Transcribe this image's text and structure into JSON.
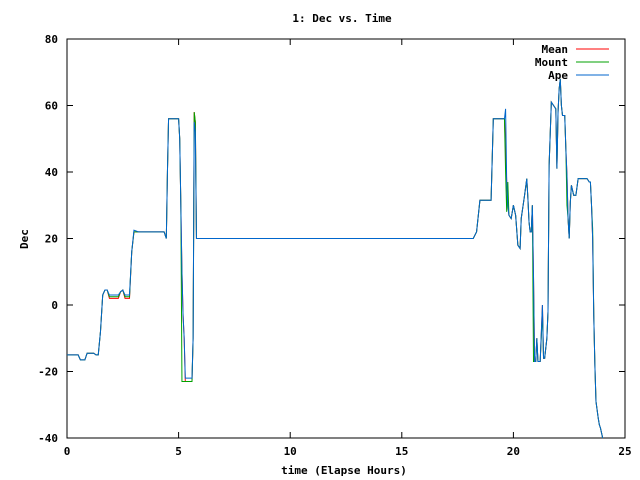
{
  "chart_data": {
    "type": "line",
    "title": "1: Dec vs. Time",
    "xlabel": "time (Elapse Hours)",
    "ylabel": "Dec",
    "xlim": [
      0,
      25
    ],
    "ylim": [
      -40,
      80
    ],
    "x_ticks": [
      "0",
      "5",
      "10",
      "15",
      "20",
      "25"
    ],
    "y_ticks": [
      "-40",
      "-20",
      "0",
      "20",
      "40",
      "60",
      "80"
    ],
    "grid": false,
    "legend_position": "top-right",
    "series": [
      {
        "name": "Mean",
        "color": "#ff0000",
        "points": [
          [
            0,
            -15
          ],
          [
            0.5,
            -15
          ],
          [
            0.6,
            -16.5
          ],
          [
            0.8,
            -16.5
          ],
          [
            0.9,
            -14.5
          ],
          [
            1.2,
            -14.5
          ],
          [
            1.3,
            -15
          ],
          [
            1.4,
            -15
          ],
          [
            1.5,
            -8
          ],
          [
            1.6,
            3
          ],
          [
            1.7,
            4.5
          ],
          [
            1.8,
            4.5
          ],
          [
            1.9,
            2
          ],
          [
            2.3,
            2
          ],
          [
            2.4,
            4
          ],
          [
            2.5,
            4.5
          ],
          [
            2.6,
            2
          ],
          [
            2.8,
            2
          ],
          [
            2.9,
            16
          ],
          [
            3.0,
            22
          ],
          [
            4.35,
            22
          ],
          [
            4.4,
            21
          ],
          [
            4.45,
            20
          ],
          [
            4.5,
            40
          ],
          [
            4.55,
            56
          ],
          [
            5.0,
            56
          ],
          [
            5.05,
            50
          ],
          [
            5.15,
            10
          ],
          [
            5.2,
            -3
          ],
          [
            5.25,
            -10
          ],
          [
            5.3,
            -23
          ],
          [
            5.6,
            -23
          ],
          [
            5.65,
            -10
          ],
          [
            5.7,
            58
          ],
          [
            5.75,
            55
          ],
          [
            5.8,
            20
          ],
          [
            14.3,
            20
          ],
          [
            18.2,
            20
          ],
          [
            18.35,
            22
          ],
          [
            18.5,
            31.5
          ],
          [
            19.0,
            31.5
          ],
          [
            19.1,
            56
          ],
          [
            19.6,
            56
          ],
          [
            19.7,
            37
          ],
          [
            19.75,
            30
          ],
          [
            19.8,
            27
          ],
          [
            19.9,
            26
          ],
          [
            20.0,
            30
          ],
          [
            20.1,
            27
          ],
          [
            20.2,
            18
          ],
          [
            20.3,
            17
          ],
          [
            20.35,
            26
          ],
          [
            20.5,
            33
          ],
          [
            20.6,
            38
          ],
          [
            20.65,
            32
          ],
          [
            20.7,
            25
          ],
          [
            20.75,
            22
          ],
          [
            20.8,
            22
          ],
          [
            20.85,
            30
          ],
          [
            20.9,
            9
          ],
          [
            20.95,
            -17
          ],
          [
            21.0,
            -17
          ],
          [
            21.05,
            -10
          ],
          [
            21.1,
            -17
          ],
          [
            21.2,
            -17
          ],
          [
            21.3,
            0
          ],
          [
            21.35,
            -16
          ],
          [
            21.4,
            -16
          ],
          [
            21.5,
            -10
          ],
          [
            21.55,
            -2
          ],
          [
            21.6,
            42
          ],
          [
            21.7,
            61
          ],
          [
            21.8,
            60
          ],
          [
            21.9,
            59
          ],
          [
            21.95,
            41
          ],
          [
            22.0,
            58
          ],
          [
            22.05,
            65
          ],
          [
            22.1,
            68
          ],
          [
            22.15,
            60
          ],
          [
            22.2,
            57
          ],
          [
            22.3,
            57
          ],
          [
            22.35,
            47
          ],
          [
            22.4,
            39
          ],
          [
            22.45,
            26
          ],
          [
            22.5,
            20
          ],
          [
            22.55,
            31
          ],
          [
            22.6,
            36
          ],
          [
            22.7,
            33
          ],
          [
            22.8,
            33
          ],
          [
            22.9,
            38
          ],
          [
            23.3,
            38
          ],
          [
            23.4,
            37
          ],
          [
            23.45,
            37
          ],
          [
            23.5,
            30
          ],
          [
            23.55,
            20
          ],
          [
            23.6,
            -3
          ],
          [
            23.65,
            -18
          ],
          [
            23.7,
            -29
          ],
          [
            23.8,
            -34
          ],
          [
            23.85,
            -36
          ],
          [
            23.9,
            -37
          ],
          [
            24.0,
            -40
          ]
        ]
      },
      {
        "name": "Mount",
        "color": "#00a000",
        "points": [
          [
            0,
            -15
          ],
          [
            0.5,
            -15
          ],
          [
            0.6,
            -16.5
          ],
          [
            0.8,
            -16.5
          ],
          [
            0.9,
            -14.5
          ],
          [
            1.2,
            -14.5
          ],
          [
            1.3,
            -15
          ],
          [
            1.4,
            -15
          ],
          [
            1.5,
            -8
          ],
          [
            1.6,
            3
          ],
          [
            1.7,
            4.5
          ],
          [
            1.8,
            4.5
          ],
          [
            1.9,
            2.5
          ],
          [
            2.3,
            2.5
          ],
          [
            2.4,
            4
          ],
          [
            2.5,
            4.5
          ],
          [
            2.6,
            2.5
          ],
          [
            2.8,
            2.5
          ],
          [
            2.9,
            16
          ],
          [
            3.0,
            22
          ],
          [
            4.35,
            22
          ],
          [
            4.4,
            21
          ],
          [
            4.45,
            20
          ],
          [
            4.5,
            40
          ],
          [
            4.55,
            56
          ],
          [
            5.0,
            56
          ],
          [
            5.05,
            50
          ],
          [
            5.1,
            30
          ],
          [
            5.15,
            -23
          ],
          [
            5.3,
            -23
          ],
          [
            5.6,
            -23
          ],
          [
            5.65,
            -10
          ],
          [
            5.7,
            58
          ],
          [
            5.75,
            55
          ],
          [
            5.8,
            20
          ],
          [
            14.3,
            20
          ],
          [
            18.2,
            20
          ],
          [
            18.35,
            22
          ],
          [
            18.5,
            31.5
          ],
          [
            19.0,
            31.5
          ],
          [
            19.1,
            56
          ],
          [
            19.6,
            56
          ],
          [
            19.65,
            40
          ],
          [
            19.7,
            28
          ],
          [
            19.75,
            37
          ],
          [
            19.8,
            27
          ],
          [
            19.9,
            26
          ],
          [
            20.0,
            30
          ],
          [
            20.1,
            27
          ],
          [
            20.2,
            18
          ],
          [
            20.3,
            17
          ],
          [
            20.35,
            26
          ],
          [
            20.5,
            33
          ],
          [
            20.6,
            38
          ],
          [
            20.65,
            32
          ],
          [
            20.7,
            25
          ],
          [
            20.75,
            22
          ],
          [
            20.8,
            22
          ],
          [
            20.85,
            30
          ],
          [
            20.9,
            -17
          ],
          [
            21.0,
            -17
          ],
          [
            21.05,
            -10
          ],
          [
            21.1,
            -17
          ],
          [
            21.2,
            -17
          ],
          [
            21.3,
            -2
          ],
          [
            21.35,
            -16
          ],
          [
            21.4,
            -16
          ],
          [
            21.5,
            -10
          ],
          [
            21.55,
            -2
          ],
          [
            21.6,
            42
          ],
          [
            21.7,
            61
          ],
          [
            21.8,
            60
          ],
          [
            21.9,
            59
          ],
          [
            21.95,
            41
          ],
          [
            22.0,
            58
          ],
          [
            22.05,
            65
          ],
          [
            22.1,
            68
          ],
          [
            22.15,
            60
          ],
          [
            22.2,
            57
          ],
          [
            22.3,
            57
          ],
          [
            22.35,
            47
          ],
          [
            22.4,
            30
          ],
          [
            22.45,
            26
          ],
          [
            22.5,
            20
          ],
          [
            22.55,
            31
          ],
          [
            22.6,
            36
          ],
          [
            22.7,
            33
          ],
          [
            22.8,
            33
          ],
          [
            22.9,
            38
          ],
          [
            23.3,
            38
          ],
          [
            23.4,
            37
          ],
          [
            23.45,
            37
          ],
          [
            23.5,
            30
          ],
          [
            23.55,
            23
          ],
          [
            23.6,
            -3
          ],
          [
            23.65,
            -18
          ],
          [
            23.7,
            -29
          ],
          [
            23.8,
            -34
          ],
          [
            23.85,
            -36
          ],
          [
            23.9,
            -37
          ],
          [
            24.0,
            -40
          ]
        ]
      },
      {
        "name": "Ape",
        "color": "#0066cc",
        "points": [
          [
            0,
            -15
          ],
          [
            0.5,
            -15
          ],
          [
            0.6,
            -16.5
          ],
          [
            0.8,
            -16.5
          ],
          [
            0.9,
            -14.5
          ],
          [
            1.2,
            -14.5
          ],
          [
            1.3,
            -15
          ],
          [
            1.4,
            -15
          ],
          [
            1.5,
            -8
          ],
          [
            1.6,
            3
          ],
          [
            1.7,
            4.5
          ],
          [
            1.8,
            4.5
          ],
          [
            1.9,
            3
          ],
          [
            2.3,
            3
          ],
          [
            2.4,
            4
          ],
          [
            2.5,
            4.5
          ],
          [
            2.6,
            3
          ],
          [
            2.8,
            3
          ],
          [
            2.9,
            16
          ],
          [
            3.0,
            22.5
          ],
          [
            3.2,
            22
          ],
          [
            4.35,
            22
          ],
          [
            4.4,
            21
          ],
          [
            4.45,
            20
          ],
          [
            4.5,
            40
          ],
          [
            4.55,
            56
          ],
          [
            5.0,
            56
          ],
          [
            5.05,
            50
          ],
          [
            5.15,
            10
          ],
          [
            5.2,
            -3
          ],
          [
            5.25,
            -10
          ],
          [
            5.3,
            -22
          ],
          [
            5.6,
            -22
          ],
          [
            5.65,
            -10
          ],
          [
            5.7,
            55
          ],
          [
            5.75,
            52
          ],
          [
            5.8,
            20
          ],
          [
            14.3,
            20
          ],
          [
            18.2,
            20
          ],
          [
            18.35,
            22
          ],
          [
            18.5,
            31.5
          ],
          [
            19.0,
            31.5
          ],
          [
            19.1,
            56
          ],
          [
            19.6,
            56
          ],
          [
            19.65,
            59
          ],
          [
            19.7,
            37
          ],
          [
            19.75,
            30
          ],
          [
            19.8,
            27
          ],
          [
            19.9,
            26
          ],
          [
            20.0,
            30
          ],
          [
            20.1,
            27
          ],
          [
            20.2,
            18
          ],
          [
            20.3,
            17
          ],
          [
            20.35,
            26
          ],
          [
            20.5,
            33
          ],
          [
            20.6,
            38
          ],
          [
            20.65,
            32
          ],
          [
            20.7,
            25
          ],
          [
            20.75,
            22
          ],
          [
            20.8,
            22
          ],
          [
            20.85,
            30
          ],
          [
            20.9,
            9
          ],
          [
            20.95,
            -17
          ],
          [
            21.0,
            -17
          ],
          [
            21.05,
            -10
          ],
          [
            21.1,
            -17
          ],
          [
            21.2,
            -17
          ],
          [
            21.3,
            0
          ],
          [
            21.35,
            -16
          ],
          [
            21.4,
            -16
          ],
          [
            21.5,
            -10
          ],
          [
            21.55,
            -2
          ],
          [
            21.6,
            42
          ],
          [
            21.7,
            61
          ],
          [
            21.8,
            60
          ],
          [
            21.9,
            59
          ],
          [
            21.95,
            41
          ],
          [
            22.0,
            58
          ],
          [
            22.05,
            65
          ],
          [
            22.1,
            68
          ],
          [
            22.15,
            60
          ],
          [
            22.2,
            57
          ],
          [
            22.3,
            57
          ],
          [
            22.35,
            47
          ],
          [
            22.4,
            39
          ],
          [
            22.45,
            26
          ],
          [
            22.5,
            20
          ],
          [
            22.55,
            31
          ],
          [
            22.6,
            36
          ],
          [
            22.7,
            33
          ],
          [
            22.8,
            33
          ],
          [
            22.9,
            38
          ],
          [
            23.3,
            38
          ],
          [
            23.4,
            37
          ],
          [
            23.45,
            37
          ],
          [
            23.5,
            30
          ],
          [
            23.55,
            20
          ],
          [
            23.6,
            -3
          ],
          [
            23.65,
            -18
          ],
          [
            23.7,
            -29
          ],
          [
            23.8,
            -34
          ],
          [
            23.85,
            -36
          ],
          [
            23.9,
            -37
          ],
          [
            24.0,
            -40
          ]
        ]
      }
    ]
  }
}
